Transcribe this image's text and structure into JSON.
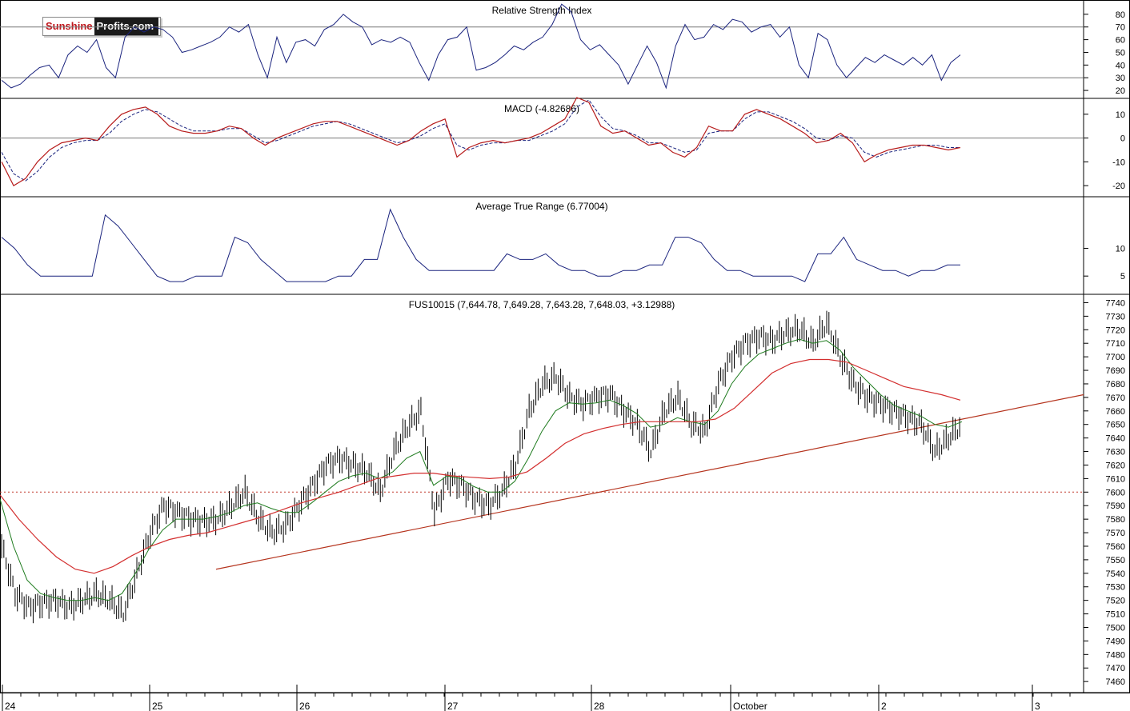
{
  "logo": {
    "part1": "Sunshine",
    "part2": "Profits.com"
  },
  "chart_data": [
    {
      "type": "line",
      "title": "Relative Strength Index",
      "ylim": [
        15,
        90
      ],
      "yticks": [
        20,
        30,
        40,
        50,
        60,
        70,
        80
      ],
      "reference_lines": [
        30,
        70
      ],
      "series": [
        {
          "values": [
            28,
            22,
            25,
            32,
            38,
            40,
            30,
            48,
            55,
            50,
            60,
            38,
            30,
            62,
            70,
            66,
            70,
            68,
            62,
            50,
            52,
            55,
            58,
            62,
            70,
            66,
            72,
            48,
            30,
            62,
            42,
            58,
            60,
            55,
            68,
            72,
            80,
            74,
            70,
            56,
            60,
            58,
            62,
            58,
            42,
            28,
            48,
            60,
            62,
            70,
            36,
            38,
            42,
            48,
            55,
            52,
            58,
            62,
            72,
            88,
            82,
            60,
            52,
            56,
            48,
            40,
            25,
            40,
            55,
            42,
            22,
            55,
            72,
            60,
            62,
            72,
            68,
            76,
            74,
            66,
            70,
            72,
            62,
            70,
            40,
            30,
            65,
            60,
            40,
            30,
            38,
            46,
            42,
            48,
            44,
            40,
            46,
            40,
            48,
            28,
            42,
            48
          ]
        }
      ]
    },
    {
      "type": "line",
      "title": "MACD (-4.82686)",
      "ylim": [
        -24,
        16
      ],
      "yticks": [
        -20,
        -10,
        0,
        10
      ],
      "reference_lines": [
        0
      ],
      "series": [
        {
          "values": [
            -10,
            -20,
            -17,
            -10,
            -5,
            -2,
            -1,
            0,
            -1,
            5,
            10,
            12,
            13,
            10,
            5,
            3,
            2,
            2,
            3,
            5,
            4,
            0,
            -3,
            0,
            2,
            4,
            6,
            7,
            7,
            5,
            3,
            1,
            -1,
            -3,
            -1,
            3,
            6,
            8,
            -8,
            -4,
            -2,
            -1,
            -2,
            -1,
            0,
            2,
            5,
            8,
            17,
            15,
            5,
            2,
            3,
            0,
            -3,
            -2,
            -6,
            -8,
            -4,
            5,
            3,
            3,
            10,
            12,
            10,
            8,
            5,
            2,
            -2,
            -1,
            2,
            -2,
            -10,
            -7,
            -5,
            -4,
            -3,
            -3,
            -4,
            -5,
            -4
          ]
        },
        {
          "values": [
            -6,
            -15,
            -18,
            -14,
            -8,
            -4,
            -2,
            -1,
            -1,
            2,
            7,
            10,
            12,
            11,
            8,
            5,
            3,
            3,
            3,
            4,
            4,
            1,
            -2,
            -1,
            1,
            3,
            5,
            6,
            7,
            6,
            4,
            2,
            0,
            -2,
            -1,
            1,
            4,
            6,
            -3,
            -5,
            -3,
            -2,
            -2,
            -1,
            -1,
            1,
            3,
            6,
            13,
            16,
            9,
            4,
            3,
            1,
            -2,
            -2,
            -4,
            -6,
            -5,
            2,
            3,
            3,
            8,
            11,
            11,
            9,
            7,
            4,
            0,
            -1,
            1,
            0,
            -6,
            -8,
            -6,
            -5,
            -4,
            -3,
            -3,
            -4,
            -4
          ]
        }
      ]
    },
    {
      "type": "line",
      "title": "Average True Range (6.77004)",
      "ylim": [
        2,
        19
      ],
      "yticks": [
        5,
        10
      ],
      "series": [
        {
          "values": [
            12,
            10,
            7,
            5,
            5,
            5,
            5,
            5,
            16,
            14,
            11,
            8,
            5,
            4,
            4,
            5,
            5,
            5,
            12,
            11,
            8,
            6,
            4,
            4,
            4,
            4,
            5,
            5,
            8,
            8,
            17,
            12,
            8,
            6,
            6,
            6,
            6,
            6,
            6,
            9,
            8,
            8,
            9,
            7,
            6,
            6,
            5,
            5,
            6,
            6,
            7,
            7,
            12,
            12,
            11,
            8,
            6,
            6,
            5,
            5,
            5,
            5,
            4,
            9,
            9,
            12,
            8,
            7,
            6,
            6,
            5,
            6,
            6,
            7,
            7
          ]
        }
      ]
    },
    {
      "type": "line",
      "title": "FUS10015 (7,644.78, 7,649.28, 7,643.28, 7,648.03, +3.12988)",
      "ylim": [
        7453,
        7745
      ],
      "yticks": [
        7460,
        7470,
        7480,
        7490,
        7500,
        7510,
        7520,
        7530,
        7540,
        7550,
        7560,
        7570,
        7580,
        7590,
        7600,
        7610,
        7620,
        7630,
        7640,
        7650,
        7660,
        7670,
        7680,
        7690,
        7700,
        7710,
        7720,
        7730,
        7740
      ],
      "x_labels": [
        "24",
        "25",
        "26",
        "27",
        "28",
        "October",
        "2",
        "3"
      ],
      "price": [
        7560,
        7525,
        7515,
        7518,
        7520,
        7515,
        7520,
        7525,
        7520,
        7510,
        7540,
        7570,
        7590,
        7585,
        7580,
        7578,
        7580,
        7590,
        7600,
        7580,
        7570,
        7575,
        7590,
        7605,
        7620,
        7625,
        7620,
        7615,
        7600,
        7630,
        7648,
        7660,
        7585,
        7610,
        7605,
        7595,
        7590,
        7600,
        7620,
        7660,
        7680,
        7685,
        7670,
        7665,
        7670,
        7672,
        7660,
        7650,
        7630,
        7660,
        7670,
        7650,
        7645,
        7680,
        7700,
        7710,
        7715,
        7712,
        7718,
        7720,
        7710,
        7725,
        7700,
        7680,
        7670,
        7665,
        7660,
        7655,
        7650,
        7630,
        7640,
        7650
      ],
      "ma_green": [
        7595,
        7560,
        7535,
        7525,
        7522,
        7520,
        7520,
        7522,
        7520,
        7525,
        7540,
        7558,
        7572,
        7580,
        7580,
        7580,
        7582,
        7585,
        7590,
        7592,
        7588,
        7585,
        7585,
        7592,
        7600,
        7608,
        7612,
        7614,
        7610,
        7615,
        7625,
        7630,
        7605,
        7612,
        7610,
        7604,
        7600,
        7600,
        7608,
        7625,
        7645,
        7660,
        7666,
        7665,
        7666,
        7668,
        7664,
        7658,
        7648,
        7650,
        7655,
        7652,
        7650,
        7660,
        7680,
        7693,
        7702,
        7706,
        7710,
        7713,
        7710,
        7712,
        7705,
        7692,
        7682,
        7672,
        7664,
        7660,
        7656,
        7650,
        7648,
        7652
      ],
      "ma_red": [
        7598,
        7580,
        7565,
        7552,
        7543,
        7540,
        7545,
        7553,
        7560,
        7565,
        7568,
        7570,
        7574,
        7578,
        7582,
        7587,
        7592,
        7596,
        7600,
        7605,
        7610,
        7612,
        7614,
        7614,
        7612,
        7611,
        7610,
        7611,
        7615,
        7625,
        7636,
        7643,
        7647,
        7650,
        7652,
        7652,
        7652,
        7652,
        7654,
        7662,
        7675,
        7688,
        7695,
        7698,
        7698,
        7696,
        7690,
        7684,
        7678,
        7675,
        7672,
        7668
      ],
      "support_line": {
        "from": 7543,
        "to": 7672
      },
      "horizontal_level": 7600
    }
  ]
}
